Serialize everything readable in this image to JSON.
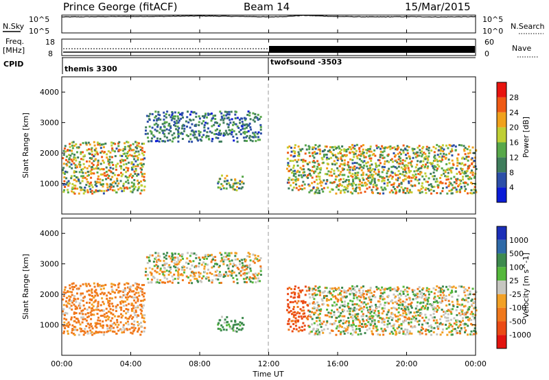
{
  "header": {
    "station": "Prince George (fitACF)",
    "beam": "Beam 14",
    "date": "15/Mar/2015"
  },
  "noise_panel": {
    "left_label": "N.Sky",
    "right_label": "N.Search",
    "y_top_label": "10^5",
    "y_bottom_label": "10^0"
  },
  "freq_panel": {
    "left_label_line1": "Freq.",
    "left_label_line2": "[MHz]",
    "left_ticks": [
      "18",
      "8"
    ],
    "right_ticks": [
      "60",
      "0"
    ],
    "right_label": "Nave"
  },
  "cpid_panel": {
    "label": "CPID",
    "segments": [
      {
        "name": "themis 3300",
        "start_hour": 0
      },
      {
        "name": "twofsound -3503",
        "start_hour": 12
      }
    ]
  },
  "x_axis": {
    "ticks": [
      "00:00",
      "04:00",
      "08:00",
      "12:00",
      "16:00",
      "20:00",
      "00:00"
    ],
    "label": "Time UT"
  },
  "y_axis": {
    "label": "Slant Range [km]",
    "ticks": [
      "1000",
      "2000",
      "3000",
      "4000"
    ]
  },
  "power_colorbar": {
    "label": "Power [dB]",
    "ticks": [
      "4",
      "8",
      "12",
      "16",
      "20",
      "24",
      "28"
    ],
    "colors": [
      "#0a1bd6",
      "#2c4fa8",
      "#3f7d5c",
      "#58a84a",
      "#bfcf35",
      "#f0a11c",
      "#ef5a14",
      "#e8140f"
    ]
  },
  "velocity_colorbar": {
    "label": "Velocity [m s^-1]",
    "ticks": [
      "1000",
      "500",
      "100",
      "25",
      "-25",
      "-100",
      "-500",
      "-1000"
    ],
    "colors": [
      "#1b2fb8",
      "#2f6aa8",
      "#3d8a4e",
      "#55b83c",
      "#c6c6c0",
      "#f2a126",
      "#f0781c",
      "#eb4a14",
      "#e2130e"
    ]
  },
  "chart_data": [
    {
      "type": "line",
      "title": "N.Sky / N.Search",
      "x_range_hours": [
        0,
        24
      ],
      "y_scale": "log",
      "ylim": [
        1,
        100000
      ],
      "series": [
        {
          "name": "N.Sky",
          "x": [
            0,
            2,
            4,
            6,
            8,
            10,
            12,
            13,
            14,
            15,
            16,
            18,
            20,
            22,
            24
          ],
          "values": [
            30000,
            35000,
            40000,
            45000,
            60000,
            45000,
            30000,
            40000,
            80000,
            60000,
            40000,
            30000,
            35000,
            30000,
            35000
          ]
        }
      ]
    },
    {
      "type": "line",
      "title": "Freq. [MHz] / Nave",
      "x_range_hours": [
        0,
        24
      ],
      "ylim": [
        8,
        18
      ],
      "series": [
        {
          "name": "Freq.",
          "x": [
            0,
            12,
            12.01,
            24
          ],
          "values": [
            10.5,
            10.5,
            11.5,
            11.5
          ]
        }
      ]
    },
    {
      "type": "heatmap",
      "title": "Power [dB]",
      "x_range_hours": [
        0,
        24
      ],
      "ylim": [
        0,
        4500
      ],
      "xlabel": "Time UT",
      "ylabel": "Slant Range [km]",
      "regions": [
        {
          "t_start": 0.0,
          "t_end": 4.8,
          "r_low": 700,
          "r_high": 2400,
          "peak_power_db": 28
        },
        {
          "t_start": 4.8,
          "t_end": 11.5,
          "r_low": 2400,
          "r_high": 3400,
          "peak_power_db": 14
        },
        {
          "t_start": 9.0,
          "t_end": 10.5,
          "r_low": 800,
          "r_high": 1300,
          "peak_power_db": 24
        },
        {
          "t_start": 13.0,
          "t_end": 14.3,
          "r_low": 800,
          "r_high": 2300,
          "peak_power_db": 26
        },
        {
          "t_start": 14.3,
          "t_end": 24.0,
          "r_low": 700,
          "r_high": 2300,
          "peak_power_db": 28
        }
      ]
    },
    {
      "type": "heatmap",
      "title": "Velocity [m s^-1]",
      "x_range_hours": [
        0,
        24
      ],
      "ylim": [
        0,
        4500
      ],
      "xlabel": "Time UT",
      "ylabel": "Slant Range [km]",
      "regions": [
        {
          "t_start": 0.0,
          "t_end": 4.8,
          "r_low": 700,
          "r_high": 2400,
          "velocity": -100
        },
        {
          "t_start": 4.8,
          "t_end": 11.5,
          "r_low": 2400,
          "r_high": 3400,
          "velocity": 0
        },
        {
          "t_start": 9.0,
          "t_end": 10.5,
          "r_low": 800,
          "r_high": 1300,
          "velocity": 100
        },
        {
          "t_start": 13.0,
          "t_end": 14.3,
          "r_low": 800,
          "r_high": 2300,
          "velocity": -300
        },
        {
          "t_start": 14.3,
          "t_end": 24.0,
          "r_low": 700,
          "r_high": 2300,
          "velocity": 0
        }
      ]
    }
  ]
}
